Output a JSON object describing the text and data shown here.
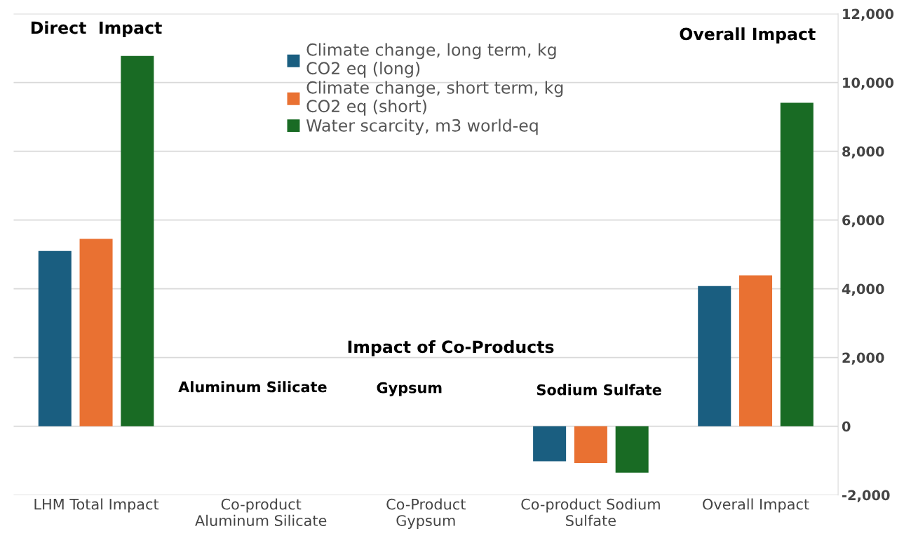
{
  "chart_data": {
    "type": "bar",
    "categories": [
      "LHM Total Impact",
      "Co-product\nAluminum Silicate",
      "Co-Product\nGypsum",
      "Co-product Sodium\nSulfate",
      "Overall Impact"
    ],
    "series": [
      {
        "name": "Climate change, long term, kg\nCO2 eq (long)",
        "color": "#1a5e80",
        "values": [
          5100,
          0,
          0,
          -1020,
          4080
        ]
      },
      {
        "name": "Climate change, short term, kg\nCO2 eq (short)",
        "color": "#e97132",
        "values": [
          5450,
          0,
          0,
          -1070,
          4390
        ]
      },
      {
        "name": "Water scarcity, m3 world-eq",
        "color": "#196b24",
        "values": [
          10770,
          0,
          0,
          -1350,
          9410
        ]
      }
    ],
    "ylim": [
      -2000,
      12000
    ],
    "yticks": [
      {
        "value": -2000,
        "label": "-2,000"
      },
      0,
      {
        "value": 2000,
        "label": "2,000"
      },
      {
        "value": 4000,
        "label": "4,000"
      },
      {
        "value": 6000,
        "label": "6,000"
      },
      {
        "value": 8000,
        "label": "8,000"
      },
      {
        "value": 10000,
        "label": "10,000"
      },
      {
        "value": 12000,
        "label": "12,000"
      }
    ],
    "grid": "y",
    "legend": "top",
    "annotations": [
      "Direct  Impact",
      "Overall Impact",
      "Impact of Co-Products",
      "Aluminum Silicate",
      "Gypsum",
      "Sodium Sulfate"
    ]
  }
}
